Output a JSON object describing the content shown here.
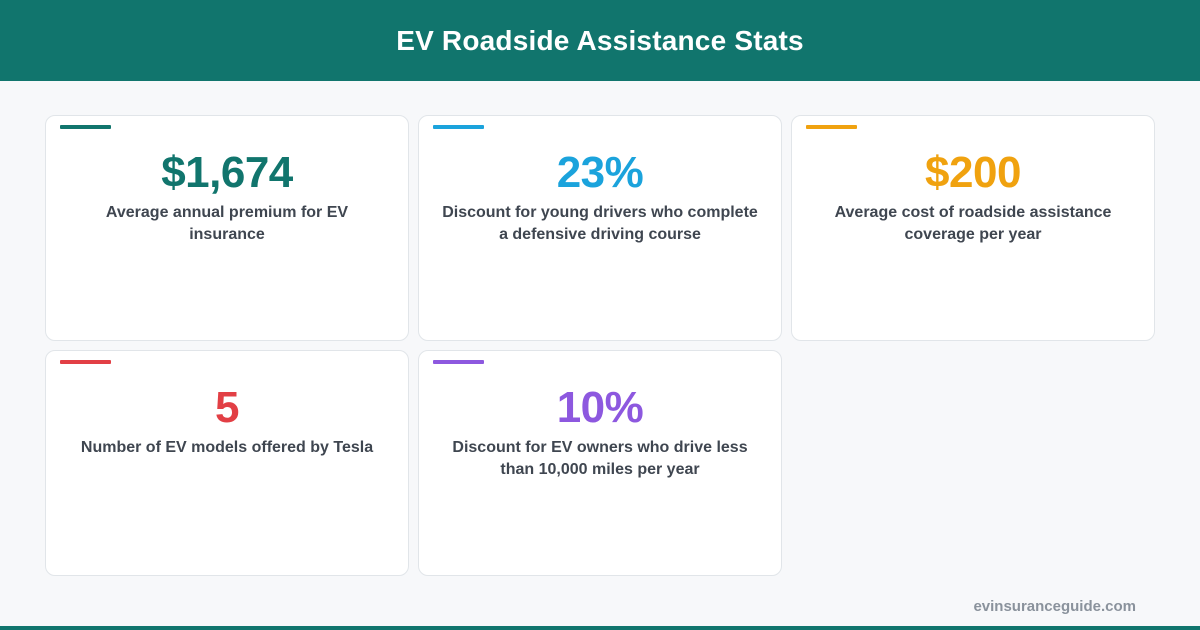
{
  "header": {
    "title": "EV Roadside Assistance Stats",
    "background_color": "#11756d"
  },
  "stats": [
    {
      "value": "$1,674",
      "label": "Average annual premium for EV insurance",
      "color": "#11756d"
    },
    {
      "value": "23%",
      "label": "Discount for young drivers who complete a defensive driving course",
      "color": "#1ba3dc"
    },
    {
      "value": "$200",
      "label": "Average cost of roadside assistance coverage per year",
      "color": "#f0a20f"
    },
    {
      "value": "5",
      "label": "Number of EV models offered by Tesla",
      "color": "#e23f45"
    },
    {
      "value": "10%",
      "label": "Discount for EV owners who drive less than 10,000 miles per year",
      "color": "#8d58df"
    }
  ],
  "footer": {
    "source": "evinsuranceguide.com"
  }
}
